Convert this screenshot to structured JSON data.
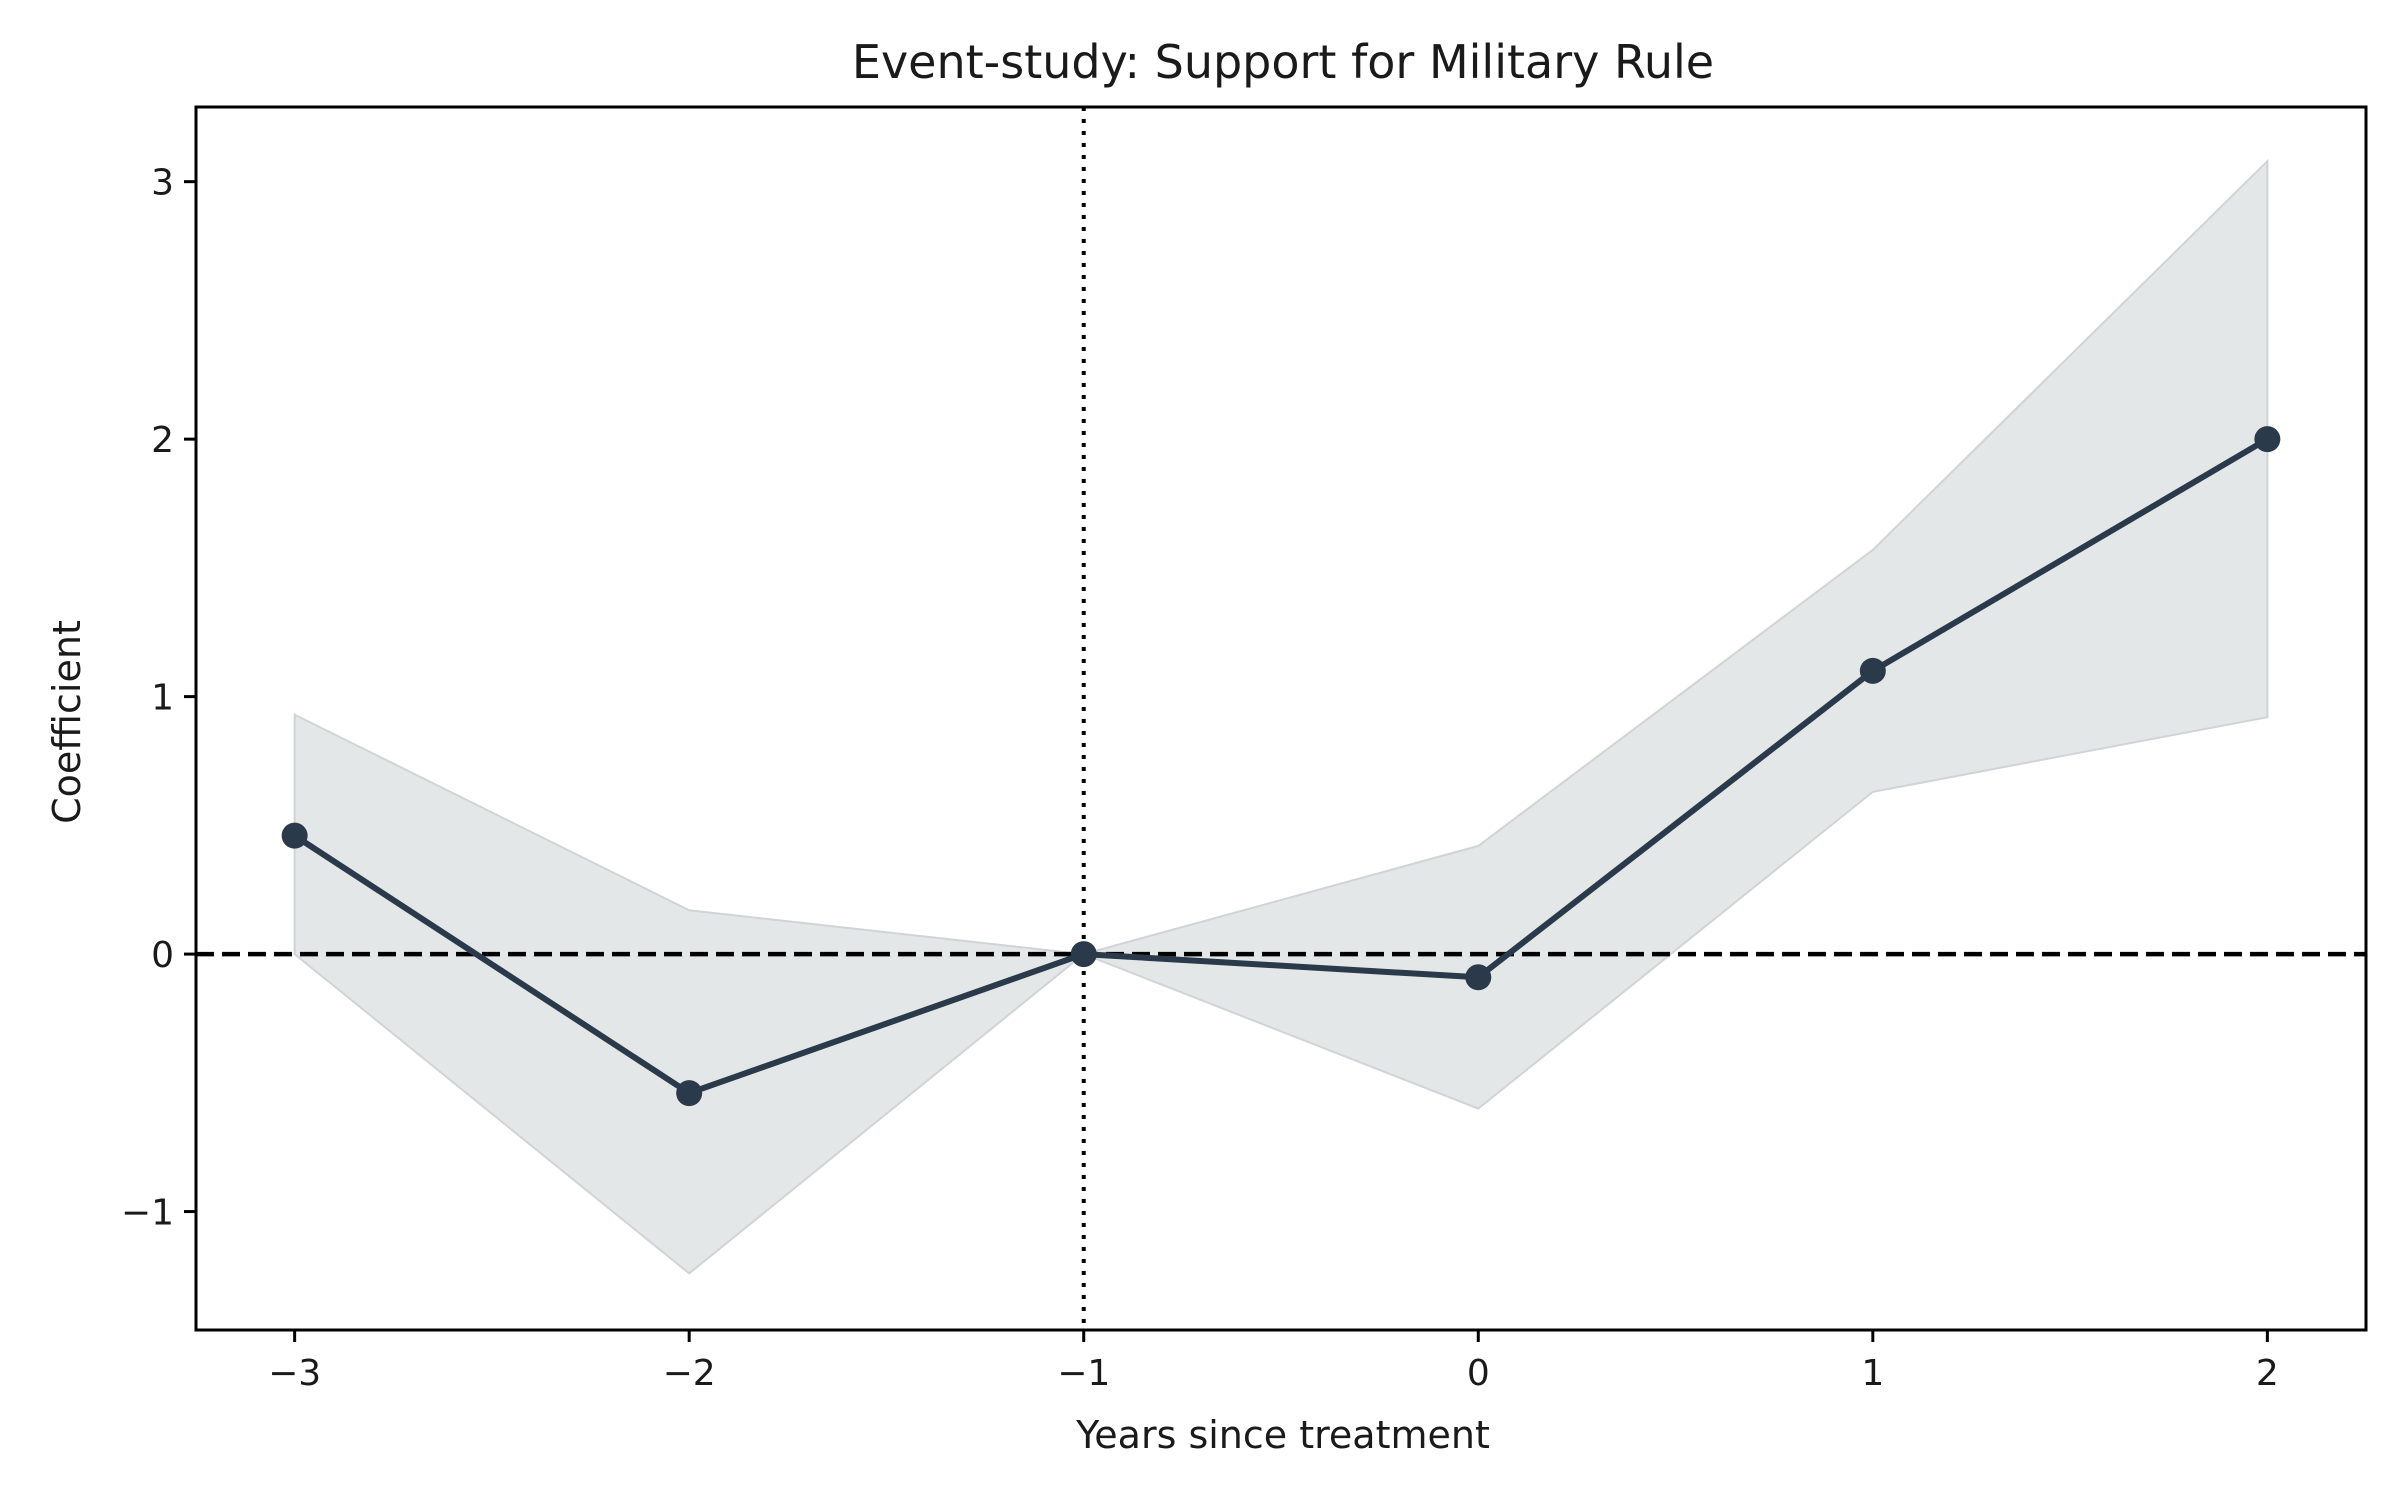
{
  "chart_data": {
    "type": "line",
    "title": "Event-study: Support for Military Rule",
    "xlabel": "Years since treatment",
    "ylabel": "Coefficient",
    "x": [
      -3,
      -2,
      -1,
      0,
      1,
      2
    ],
    "series": [
      {
        "values": [
          0.46,
          -0.54,
          0.0,
          -0.09,
          1.1,
          2.0
        ],
        "ci_lower": [
          0.0,
          -1.24,
          0.0,
          -0.6,
          0.63,
          0.92
        ],
        "ci_upper": [
          0.93,
          0.17,
          0.0,
          0.42,
          1.57,
          3.08
        ]
      }
    ],
    "xlim": [
      -3.25,
      2.25
    ],
    "ylim": [
      -1.46,
      3.29
    ],
    "xticks": [
      -3,
      -2,
      -1,
      0,
      1,
      2
    ],
    "xtick_labels": [
      "−3",
      "−2",
      "−1",
      "0",
      "1",
      "2"
    ],
    "yticks": [
      -1,
      0,
      1,
      2,
      3
    ],
    "ytick_labels": [
      "−1",
      "0",
      "1",
      "2",
      "3"
    ],
    "reference_lines": {
      "horizontal_y": 0,
      "horizontal_style": "dashed",
      "vertical_x": -1,
      "vertical_style": "dotted"
    },
    "grid": false,
    "legend": "none",
    "colors": {
      "line": "#2b3a4b",
      "band": "#dfe3e5",
      "band_edge": "#c9cdd1",
      "reference": "#000000",
      "axes": "#000000"
    }
  }
}
